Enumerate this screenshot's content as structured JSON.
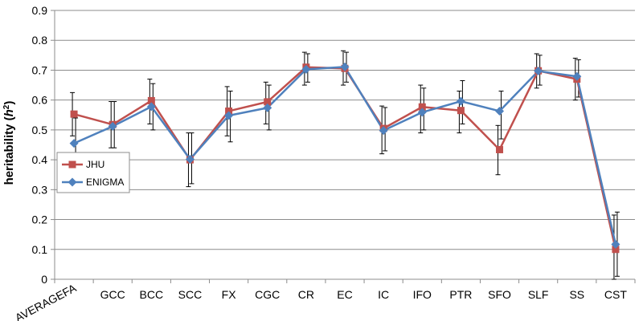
{
  "chart_data": {
    "type": "line",
    "title": "",
    "xlabel": "",
    "ylabel": "heritability (",
    "ylabel_symbol": "h",
    "ylabel_sup": "2",
    "ylabel_close": ")",
    "ylim": [
      0,
      0.9
    ],
    "y_ticks": [
      "0",
      "0.1",
      "0.2",
      "0.3",
      "0.4",
      "0.5",
      "0.6",
      "0.7",
      "0.8",
      "0.9"
    ],
    "grid": "horizontal",
    "legend_position": "left-middle",
    "categories": [
      "AVERAGEFA",
      "GCC",
      "BCC",
      "SCC",
      "FX",
      "CGC",
      "CR",
      "EC",
      "IC",
      "IFO",
      "PTR",
      "SFO",
      "SLF",
      "SS",
      "CST"
    ],
    "series": [
      {
        "name": "JHU",
        "color": "#c0504d",
        "marker": "square",
        "values": [
          0.553,
          0.518,
          0.598,
          0.4,
          0.563,
          0.594,
          0.71,
          0.706,
          0.505,
          0.577,
          0.565,
          0.434,
          0.698,
          0.67,
          0.1
        ],
        "err_low": [
          0.48,
          0.44,
          0.52,
          0.31,
          0.48,
          0.52,
          0.65,
          0.65,
          0.42,
          0.49,
          0.49,
          0.35,
          0.64,
          0.6,
          0.0
        ],
        "err_high": [
          0.625,
          0.595,
          0.67,
          0.49,
          0.645,
          0.66,
          0.76,
          0.765,
          0.58,
          0.65,
          0.63,
          0.515,
          0.755,
          0.74,
          0.215
        ]
      },
      {
        "name": "ENIGMA",
        "color": "#4f81bd",
        "marker": "diamond",
        "values": [
          0.455,
          0.512,
          0.578,
          0.402,
          0.548,
          0.574,
          0.703,
          0.711,
          0.498,
          0.559,
          0.596,
          0.563,
          0.697,
          0.679,
          0.117
        ],
        "err_low": [
          0.38,
          0.44,
          0.5,
          0.32,
          0.46,
          0.5,
          0.66,
          0.66,
          0.43,
          0.5,
          0.52,
          0.47,
          0.65,
          0.61,
          0.01
        ],
        "err_high": [
          0.54,
          0.595,
          0.655,
          0.49,
          0.63,
          0.65,
          0.755,
          0.76,
          0.575,
          0.64,
          0.665,
          0.63,
          0.75,
          0.735,
          0.225
        ]
      }
    ]
  }
}
